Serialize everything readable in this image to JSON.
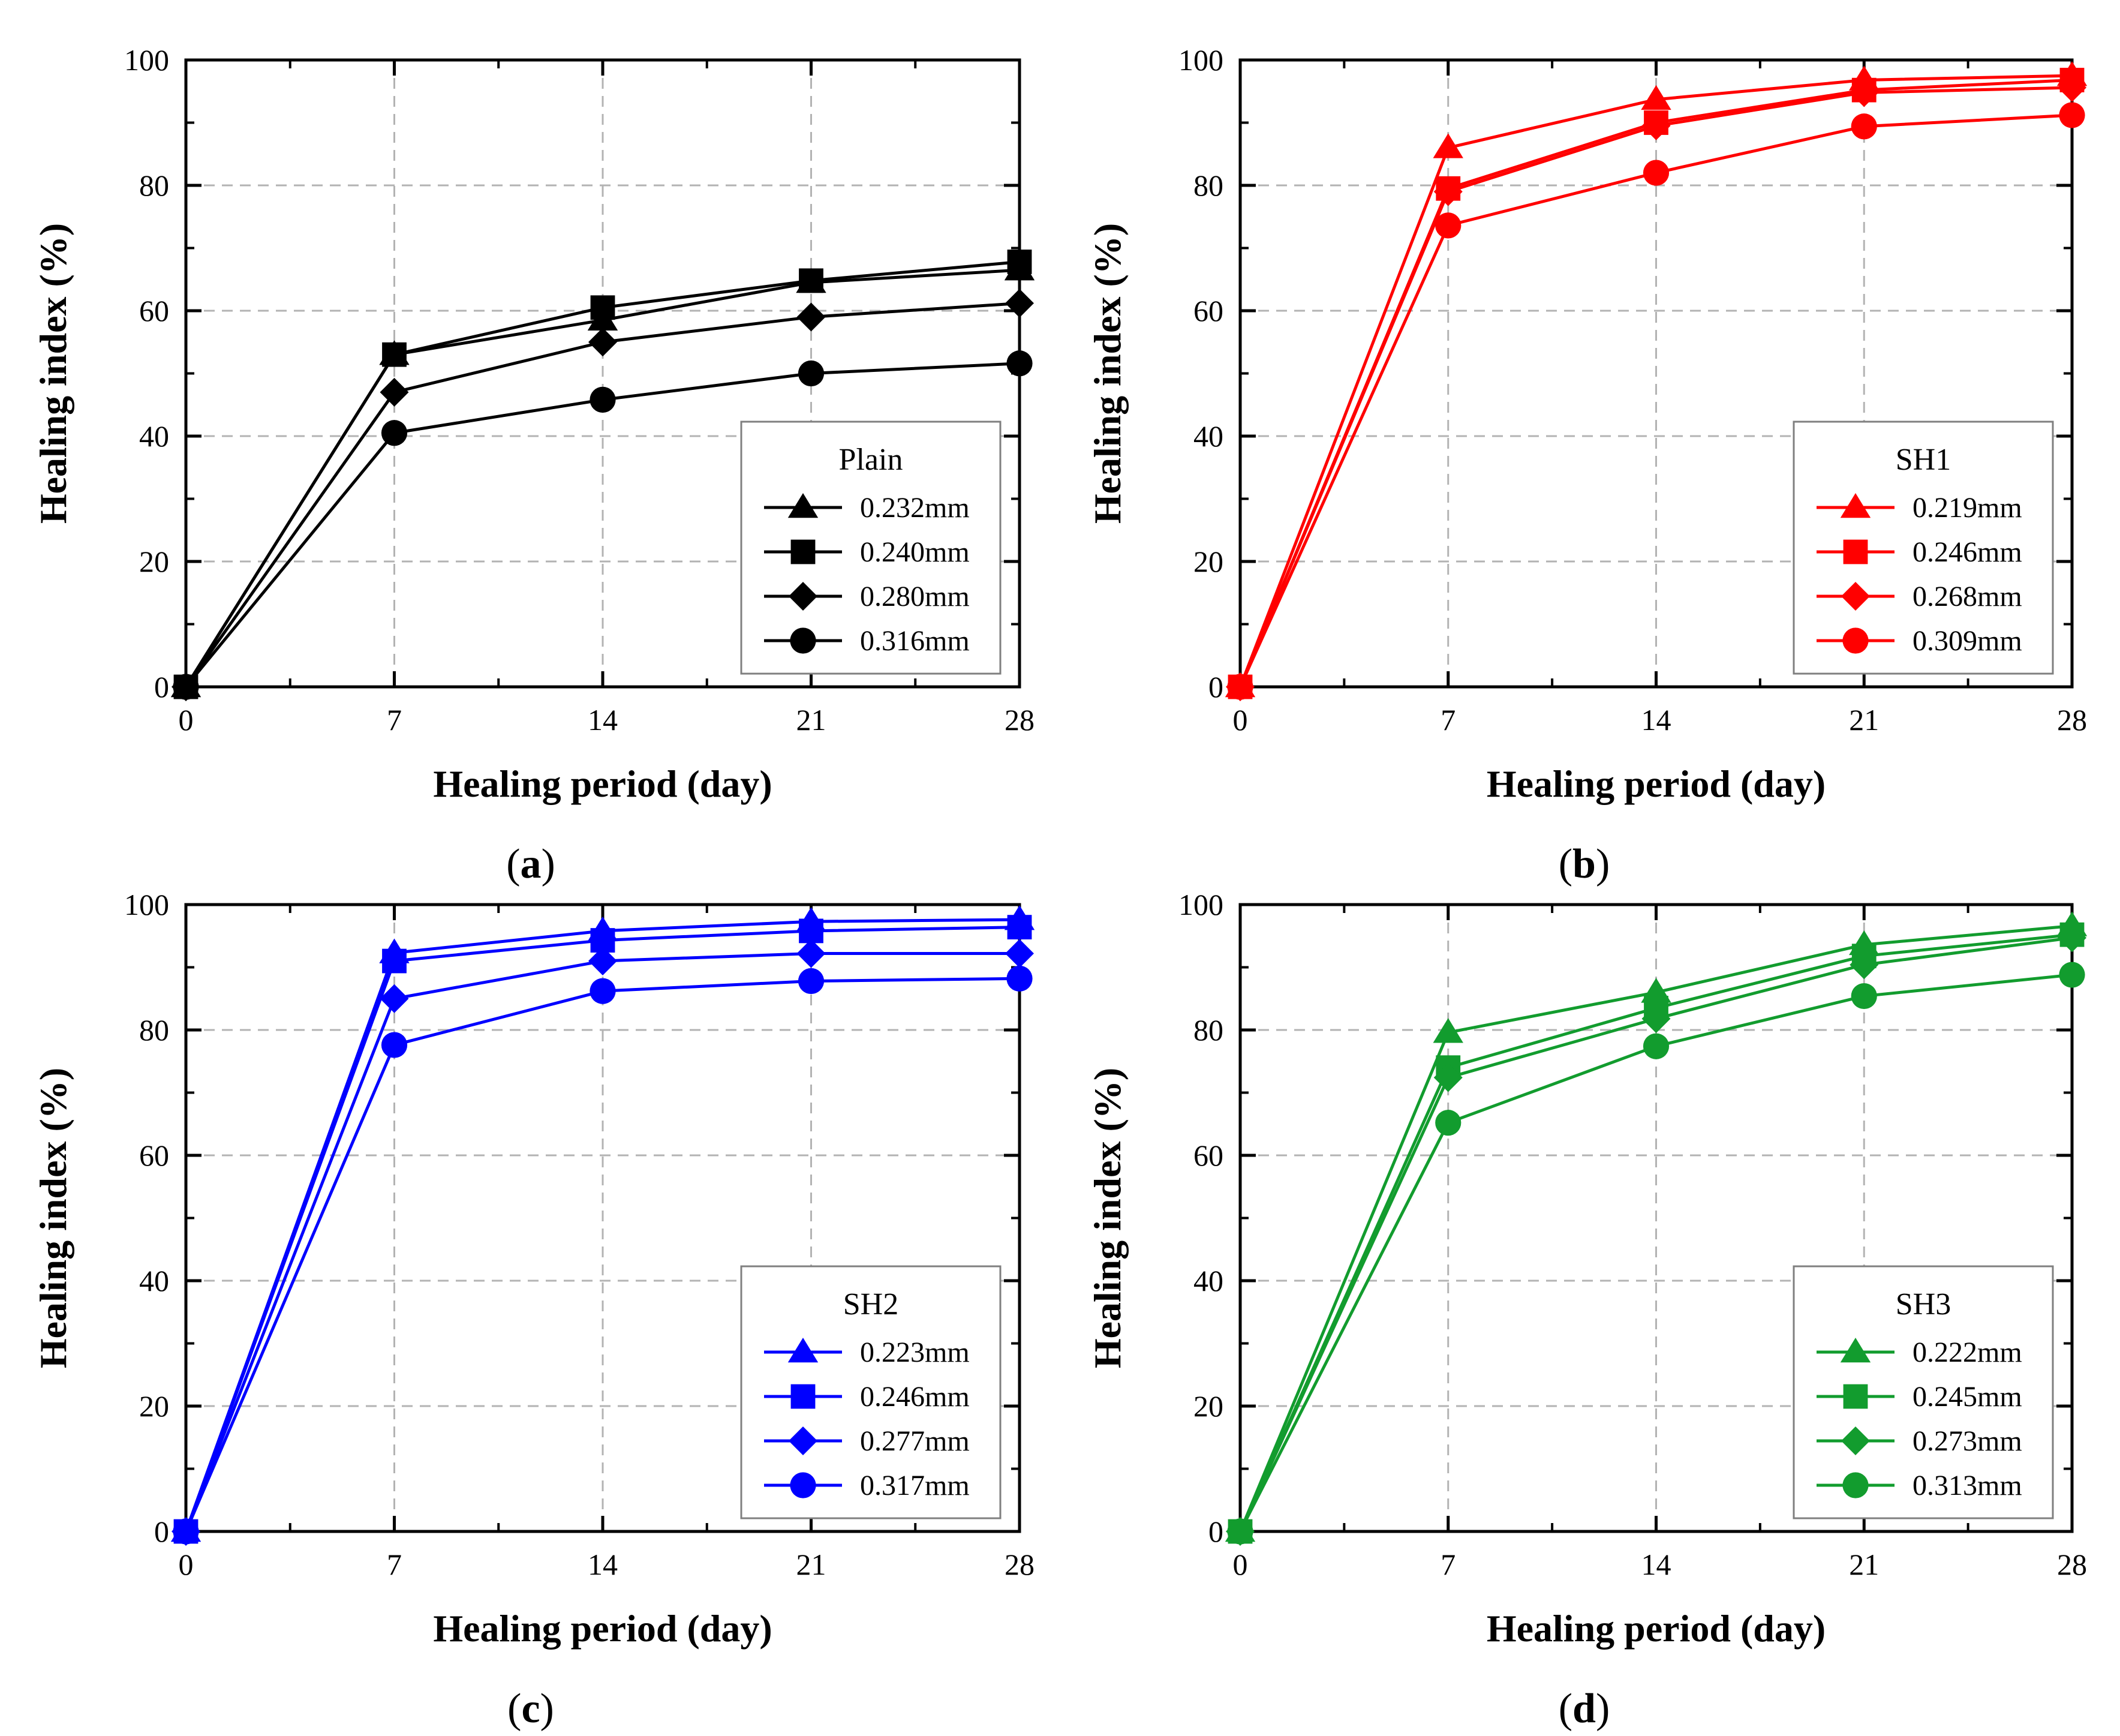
{
  "figure": {
    "x_axis_title": "Healing period (day)",
    "y_axis_title": "Healing index (%)"
  },
  "chart_data": [
    {
      "type": "line",
      "panel": "a",
      "panel_label": "(a)",
      "color": "#000000",
      "legend_title": "Plain",
      "xlabel": "Healing period (day)",
      "ylabel": "Healing index (%)",
      "x": [
        0,
        7,
        14,
        21,
        28
      ],
      "x_ticks": [
        "0",
        "7",
        "14",
        "21",
        "28"
      ],
      "y_ticks": [
        "0",
        "20",
        "40",
        "60",
        "80",
        "100"
      ],
      "xlim": [
        0,
        28
      ],
      "ylim": [
        0,
        100
      ],
      "grid": true,
      "legend_position": "bottom-right",
      "series": [
        {
          "name": "0.232mm",
          "marker": "triangle",
          "values": [
            0,
            53.0,
            58.5,
            64.5,
            66.5
          ]
        },
        {
          "name": "0.240mm",
          "marker": "square",
          "values": [
            0,
            53.0,
            60.5,
            64.8,
            67.8
          ]
        },
        {
          "name": "0.280mm",
          "marker": "diamond",
          "values": [
            0,
            47.0,
            55.0,
            59.0,
            61.2
          ]
        },
        {
          "name": "0.316mm",
          "marker": "circle",
          "values": [
            0,
            40.5,
            45.8,
            50.0,
            51.6
          ]
        }
      ]
    },
    {
      "type": "line",
      "panel": "b",
      "panel_label": "(b)",
      "color": "#ff0000",
      "legend_title": "SH1",
      "xlabel": "Healing period (day)",
      "ylabel": "Healing index (%)",
      "x": [
        0,
        7,
        14,
        21,
        28
      ],
      "x_ticks": [
        "0",
        "7",
        "14",
        "21",
        "28"
      ],
      "y_ticks": [
        "0",
        "20",
        "40",
        "60",
        "80",
        "100"
      ],
      "xlim": [
        0,
        28
      ],
      "ylim": [
        0,
        100
      ],
      "grid": true,
      "legend_position": "bottom-right",
      "series": [
        {
          "name": "0.219mm",
          "marker": "triangle",
          "values": [
            0,
            86.0,
            93.7,
            96.8,
            97.5
          ]
        },
        {
          "name": "0.246mm",
          "marker": "square",
          "values": [
            0,
            79.5,
            90.0,
            95.2,
            96.8
          ]
        },
        {
          "name": "0.268mm",
          "marker": "diamond",
          "values": [
            0,
            79.0,
            89.5,
            94.8,
            95.6
          ]
        },
        {
          "name": "0.309mm",
          "marker": "circle",
          "values": [
            0,
            73.6,
            82.0,
            89.4,
            91.2
          ]
        }
      ]
    },
    {
      "type": "line",
      "panel": "c",
      "panel_label": "(c)",
      "color": "#0000ff",
      "legend_title": "SH2",
      "xlabel": "Healing period (day)",
      "ylabel": "Healing index (%)",
      "x": [
        0,
        7,
        14,
        21,
        28
      ],
      "x_ticks": [
        "0",
        "7",
        "14",
        "21",
        "28"
      ],
      "y_ticks": [
        "0",
        "20",
        "40",
        "60",
        "80",
        "100"
      ],
      "xlim": [
        0,
        28
      ],
      "ylim": [
        0,
        100
      ],
      "grid": true,
      "legend_position": "bottom-right",
      "series": [
        {
          "name": "0.223mm",
          "marker": "triangle",
          "values": [
            0,
            92.3,
            95.8,
            97.3,
            97.6
          ]
        },
        {
          "name": "0.246mm",
          "marker": "square",
          "values": [
            0,
            91.0,
            94.3,
            95.8,
            96.4
          ]
        },
        {
          "name": "0.277mm",
          "marker": "diamond",
          "values": [
            0,
            85.0,
            91.0,
            92.2,
            92.2
          ]
        },
        {
          "name": "0.317mm",
          "marker": "circle",
          "values": [
            0,
            77.6,
            86.2,
            87.8,
            88.2
          ]
        }
      ]
    },
    {
      "type": "line",
      "panel": "d",
      "panel_label": "(d)",
      "color": "#129c2e",
      "legend_title": "SH3",
      "xlabel": "Healing period (day)",
      "ylabel": "Healing index (%)",
      "x": [
        0,
        7,
        14,
        21,
        28
      ],
      "x_ticks": [
        "0",
        "7",
        "14",
        "21",
        "28"
      ],
      "y_ticks": [
        "0",
        "20",
        "40",
        "60",
        "80",
        "100"
      ],
      "xlim": [
        0,
        28
      ],
      "ylim": [
        0,
        100
      ],
      "grid": true,
      "legend_position": "bottom-right",
      "series": [
        {
          "name": "0.222mm",
          "marker": "triangle",
          "values": [
            0,
            79.6,
            86.0,
            93.6,
            96.6
          ]
        },
        {
          "name": "0.245mm",
          "marker": "square",
          "values": [
            0,
            74.0,
            83.5,
            91.8,
            95.2
          ]
        },
        {
          "name": "0.273mm",
          "marker": "diamond",
          "values": [
            0,
            72.4,
            81.8,
            90.4,
            94.7
          ]
        },
        {
          "name": "0.313mm",
          "marker": "circle",
          "values": [
            0,
            65.2,
            77.4,
            85.4,
            88.8
          ]
        }
      ]
    }
  ]
}
